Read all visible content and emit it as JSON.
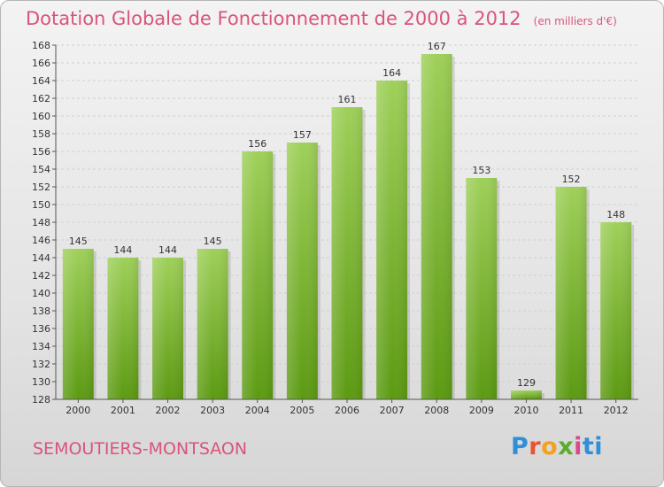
{
  "title": "Dotation Globale de Fonctionnement de 2000 à 2012",
  "subtitle": "(en milliers d'€)",
  "commune": "SEMOUTIERS-MONTSAON",
  "logo": {
    "p": "P",
    "r": "r",
    "o": "o",
    "x": "x",
    "i": "i",
    "ti": "ti"
  },
  "colors": {
    "bar_light": "#9fd05a",
    "bar_dark": "#5c9a12",
    "title": "#d9547a"
  },
  "chart_data": {
    "type": "bar",
    "categories": [
      "2000",
      "2001",
      "2002",
      "2003",
      "2004",
      "2005",
      "2006",
      "2007",
      "2008",
      "2009",
      "2010",
      "2011",
      "2012"
    ],
    "values": [
      145,
      144,
      144,
      145,
      156,
      157,
      161,
      164,
      167,
      153,
      129,
      152,
      148
    ],
    "ylim": [
      128,
      168
    ],
    "ytick_step": 2,
    "grid": true
  }
}
